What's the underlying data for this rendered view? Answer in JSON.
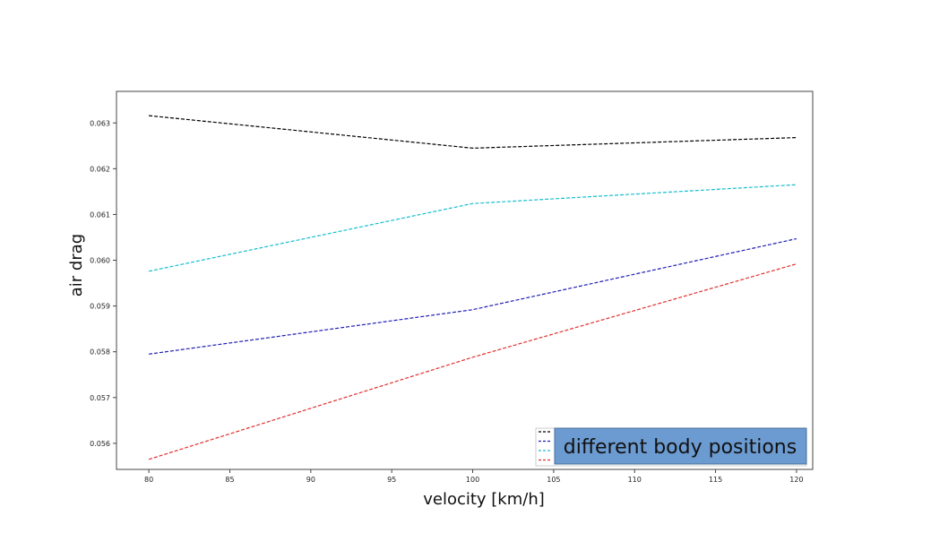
{
  "chart_data": {
    "type": "line",
    "title": "",
    "xlabel": "velocity [km/h]",
    "ylabel": "air drag",
    "xlim": [
      78,
      121
    ],
    "ylim": [
      0.05543,
      0.06369
    ],
    "xticks": [
      80,
      85,
      90,
      95,
      100,
      105,
      110,
      115,
      120
    ],
    "yticks": [
      0.056,
      0.057,
      0.058,
      0.059,
      0.06,
      0.061,
      0.062,
      0.063
    ],
    "ytick_labels": [
      "0.056",
      "0.057",
      "0.058",
      "0.059",
      "0.060",
      "0.061",
      "0.062",
      "0.063"
    ],
    "x": [
      80,
      100,
      120
    ],
    "series": [
      {
        "values": [
          0.06316,
          0.06245,
          0.06268
        ],
        "color": "#000000",
        "line_style": "dashed"
      },
      {
        "values": [
          0.05795,
          0.05892,
          0.06047
        ],
        "color": "#1f1fb4",
        "line_style": "dashed"
      },
      {
        "values": [
          0.05976,
          0.06124,
          0.06165
        ],
        "color": "#17becf",
        "line_style": "dashed"
      },
      {
        "values": [
          0.05565,
          0.05788,
          0.05992
        ],
        "color": "#e03030",
        "line_style": "dashed"
      }
    ],
    "legend": {
      "title": "different body positions",
      "placement": "lower-right",
      "title_background": "#6b9bd1"
    },
    "grid": false
  }
}
